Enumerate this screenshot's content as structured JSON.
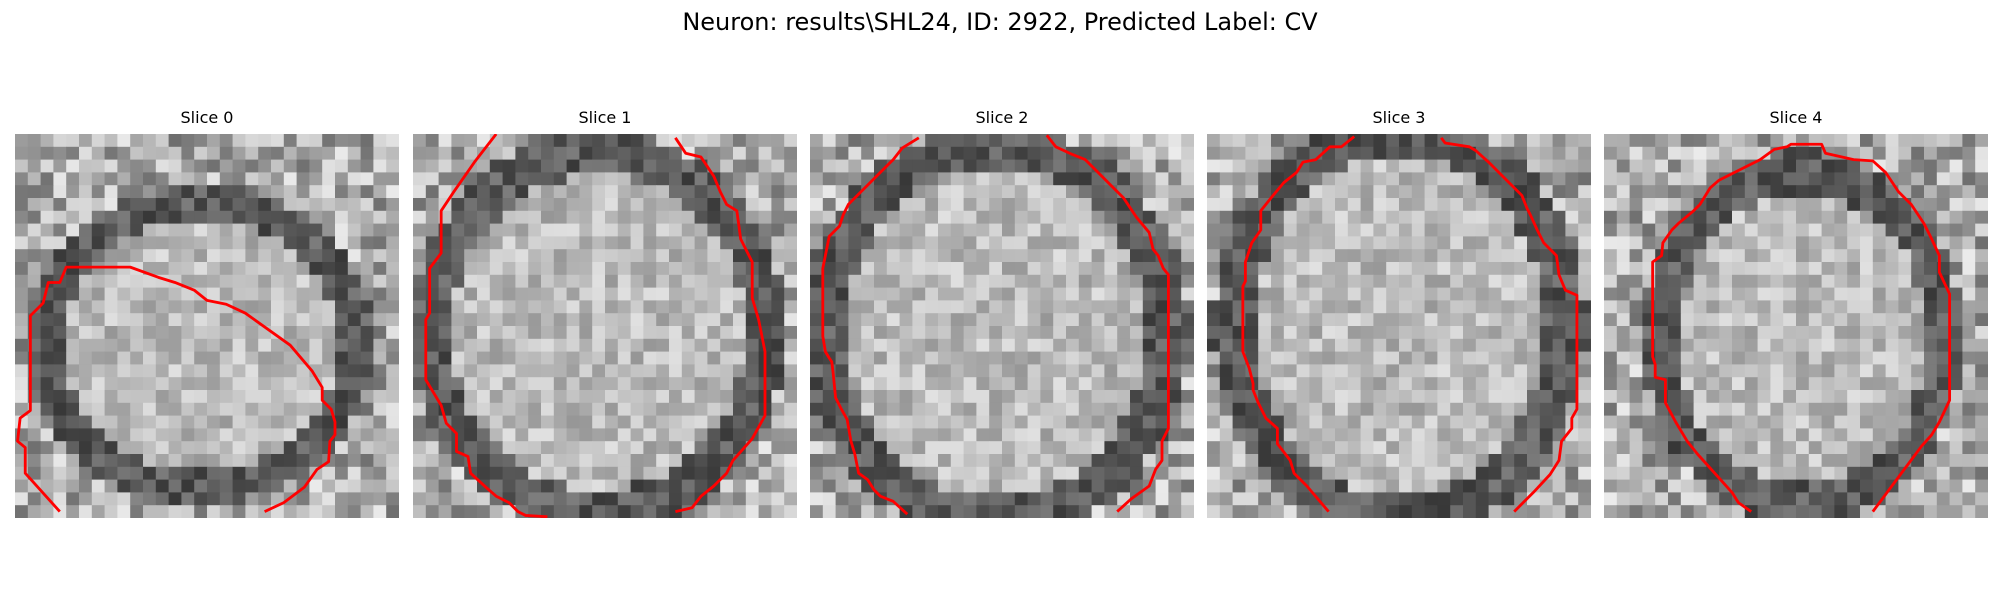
{
  "figure": {
    "title": "Neuron: results\\SHL24, ID: 2922, Predicted Label: CV",
    "contour_color": "#ff0000"
  },
  "panels": [
    {
      "title": "Slice 0"
    },
    {
      "title": "Slice 1"
    },
    {
      "title": "Slice 2"
    },
    {
      "title": "Slice 3"
    },
    {
      "title": "Slice 4"
    }
  ]
}
